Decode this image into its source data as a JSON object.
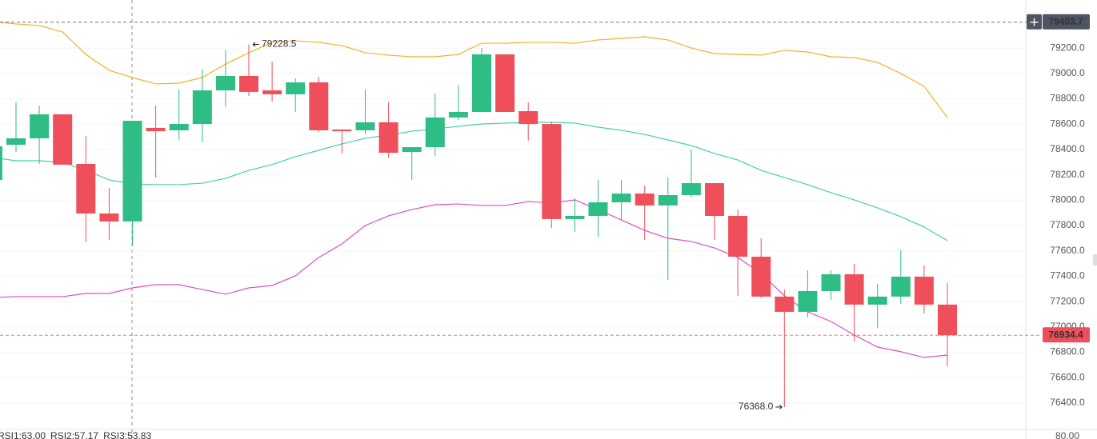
{
  "chart_data": {
    "type": "candlestick",
    "ylim": [
      76204,
      79579
    ],
    "yticks": [
      {
        "value": 76400,
        "label": "76400.0"
      },
      {
        "value": 76600,
        "label": "76600.0"
      },
      {
        "value": 76800,
        "label": "76800.0"
      },
      {
        "value": 77000,
        "label": "77000.0"
      },
      {
        "value": 77200,
        "label": "77200.0"
      },
      {
        "value": 77400,
        "label": "77400.0"
      },
      {
        "value": 77600,
        "label": "77600.0"
      },
      {
        "value": 77800,
        "label": "77800.0"
      },
      {
        "value": 78000,
        "label": "78000.0"
      },
      {
        "value": 78200,
        "label": "78200.0"
      },
      {
        "value": 78400,
        "label": "78400.0"
      },
      {
        "value": 78600,
        "label": "78600.0"
      },
      {
        "value": 78800,
        "label": "78800.0"
      },
      {
        "value": 79000,
        "label": "79000.0"
      },
      {
        "value": 79200,
        "label": "79200.0"
      }
    ],
    "grid": true,
    "up_color": "#2ebd85",
    "down_color": "#ef4f5a",
    "open": [
      78160,
      78437,
      78488,
      78677,
      78286,
      77895,
      77832,
      78570,
      78551,
      78601,
      78866,
      78980,
      78866,
      78835,
      78929,
      78557,
      78551,
      78614,
      78380,
      78418,
      78652,
      78696,
      79150,
      78702,
      78601,
      77851,
      77876,
      77983,
      78052,
      77958,
      78040,
      78134,
      77876,
      77554,
      77239,
      77119,
      77283,
      77415,
      77176,
      77239,
      77396,
      77176
    ],
    "high": [
      78614,
      78772,
      78746,
      78677,
      78507,
      78097,
      78626,
      78746,
      78872,
      79030,
      79188,
      79228.5,
      79093,
      78961,
      78973,
      78557,
      78872,
      78772,
      78418,
      78841,
      78910,
      79200,
      79150,
      78772,
      78620,
      78015,
      78160,
      78160,
      78115,
      78179,
      78399,
      78134,
      77926,
      77699,
      77295,
      77447,
      77447,
      77497,
      77340,
      77604,
      77485,
      77346
    ],
    "low": [
      78160,
      78380,
      78286,
      78280,
      77668,
      77687,
      77642,
      78179,
      78475,
      78456,
      78740,
      78822,
      78778,
      78696,
      78538,
      78368,
      78519,
      78336,
      78160,
      78349,
      78633,
      78696,
      78696,
      78469,
      77781,
      77750,
      77712,
      77844,
      77687,
      77371,
      78021,
      77687,
      77245,
      77226,
      76368.0,
      77075,
      77214,
      76886,
      76993,
      77182,
      77106,
      76690
    ],
    "close": [
      78425,
      78488,
      78677,
      78280,
      77895,
      77832,
      78626,
      78544,
      78601,
      78866,
      78980,
      78854,
      78835,
      78929,
      78551,
      78544,
      78614,
      78374,
      78418,
      78652,
      78696,
      79150,
      78696,
      78601,
      77851,
      77876,
      77983,
      78052,
      77958,
      78040,
      78134,
      77876,
      77554,
      77239,
      77119,
      77283,
      77415,
      77176,
      77239,
      77396,
      77176,
      76934.4
    ],
    "lines": [
      {
        "color": "#f5b027",
        "values": [
          79409,
          79390,
          79377,
          79327,
          79150,
          79024,
          78967,
          78917,
          78923,
          78967,
          79074,
          79163,
          79245,
          79257,
          79245,
          79219,
          79163,
          79144,
          79131,
          79131,
          79150,
          79238,
          79238,
          79245,
          79245,
          79238,
          79264,
          79276,
          79289,
          79264,
          79200,
          79156,
          79150,
          79144,
          79182,
          79169,
          79131,
          79125,
          79087,
          78999,
          78898,
          78652
        ]
      },
      {
        "color": "#45cdb8",
        "values": [
          78336,
          78311,
          78311,
          78298,
          78235,
          78160,
          78128,
          78122,
          78122,
          78134,
          78172,
          78235,
          78280,
          78343,
          78393,
          78444,
          78488,
          78513,
          78544,
          78563,
          78582,
          78601,
          78608,
          78614,
          78614,
          78608,
          78576,
          78551,
          78519,
          78475,
          78431,
          78368,
          78317,
          78235,
          78179,
          78122,
          78059,
          78002,
          77939,
          77870,
          77788,
          77680
        ]
      },
      {
        "color": "#de4fc6",
        "values": [
          77232,
          77239,
          77239,
          77239,
          77264,
          77264,
          77308,
          77333,
          77333,
          77295,
          77258,
          77308,
          77327,
          77403,
          77548,
          77655,
          77800,
          77876,
          77926,
          77964,
          77970,
          77958,
          77958,
          77989,
          77977,
          78002,
          77926,
          77844,
          77762,
          77699,
          77674,
          77623,
          77548,
          77422,
          77245,
          77119,
          77043,
          76936,
          76841,
          76804,
          76759,
          76778
        ]
      }
    ],
    "extreme_labels": {
      "high": "79228.5",
      "low": "76368.0"
    },
    "price_lines": [
      {
        "value": 79403.7,
        "label": "79403.7",
        "color": "#4d5563"
      },
      {
        "value": 76934.4,
        "label": "76934.4",
        "color": "#ef4f5a"
      }
    ],
    "indicators": [
      {
        "label": "RSI1:63.00",
        "color": "#2ebd85"
      },
      {
        "label": "RSI2:57.17",
        "color": "#f5b027"
      },
      {
        "label": "RSI3:53.83",
        "color": "#de4fc6"
      }
    ],
    "rsi_yticks": [
      {
        "value": 80,
        "label": "80.00"
      }
    ]
  }
}
